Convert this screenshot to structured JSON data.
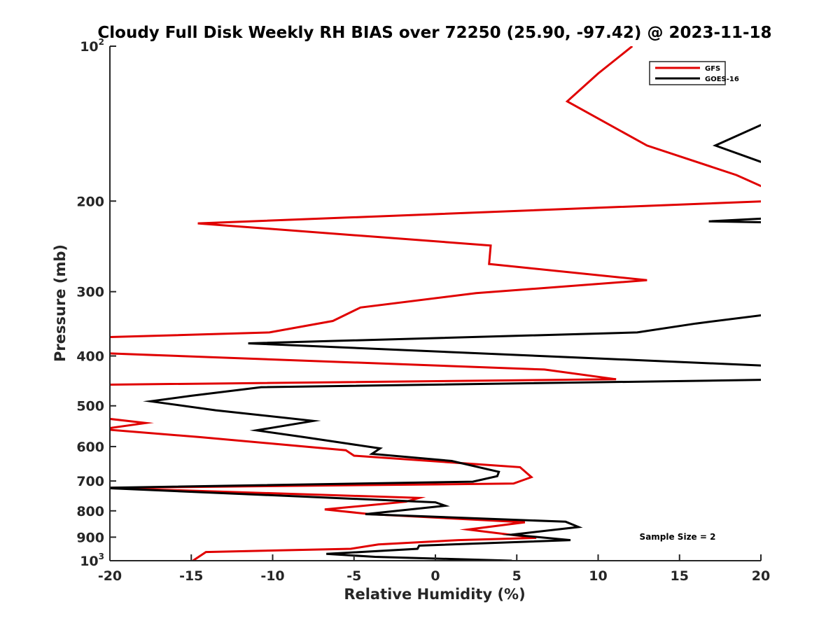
{
  "chart_data": {
    "type": "line",
    "title": "Cloudy Full Disk Weekly RH BIAS over 72250 (25.90, -97.42) @ 2023-11-18",
    "xlabel": "Relative Humidity (%)",
    "ylabel": "Pressure (mb)",
    "xlim": [
      -20,
      20
    ],
    "ylim": [
      100,
      1000
    ],
    "y_scale": "log",
    "y_reversed": true,
    "x_ticks": [
      "-20",
      "-15",
      "-10",
      "-5",
      "0",
      "5",
      "10",
      "15",
      "20"
    ],
    "y_ticks": [
      {
        "value": 100,
        "base": "10",
        "exp": "2"
      },
      {
        "value": 200,
        "label": "200"
      },
      {
        "value": 300,
        "label": "300"
      },
      {
        "value": 400,
        "label": "400"
      },
      {
        "value": 500,
        "label": "500"
      },
      {
        "value": 600,
        "label": "600"
      },
      {
        "value": 700,
        "label": "700"
      },
      {
        "value": 800,
        "label": "800"
      },
      {
        "value": 900,
        "label": "900"
      },
      {
        "value": 1000,
        "base": "10",
        "exp": "3"
      }
    ],
    "grid": false,
    "legend_position": "top-right",
    "annotation": "Sample Size = 2",
    "series": [
      {
        "name": "GFS",
        "color": "#e00000",
        "points": [
          [
            -14.9,
            1000
          ],
          [
            -14.1,
            962
          ],
          [
            -5.2,
            948
          ],
          [
            -3.5,
            930
          ],
          [
            1.4,
            912
          ],
          [
            6.2,
            903
          ],
          [
            2.0,
            870
          ],
          [
            5.5,
            842
          ],
          [
            -4.0,
            812
          ],
          [
            -6.8,
            795
          ],
          [
            -1.8,
            768
          ],
          [
            -1.0,
            755
          ],
          [
            -20.5,
            722
          ],
          [
            4.8,
            708
          ],
          [
            5.9,
            688
          ],
          [
            5.2,
            658
          ],
          [
            -5.0,
            625
          ],
          [
            -5.5,
            610
          ],
          [
            -14.5,
            575
          ],
          [
            -20.5,
            555
          ],
          [
            -17.8,
            540
          ],
          [
            -20.5,
            528
          ],
          [
            -20.5,
            455
          ],
          [
            11.1,
            444
          ],
          [
            6.7,
            425
          ],
          [
            -20.5,
            395
          ],
          [
            -20.5,
            368
          ],
          [
            -10.2,
            360
          ],
          [
            -6.3,
            342
          ],
          [
            -4.6,
            322
          ],
          [
            2.5,
            302
          ],
          [
            13.0,
            285
          ],
          [
            3.3,
            265
          ],
          [
            3.4,
            244
          ],
          [
            -14.6,
            221
          ],
          [
            20.5,
            200
          ],
          [
            20.5,
            190
          ],
          [
            18.5,
            178
          ],
          [
            13.0,
            156
          ],
          [
            8.1,
            128
          ],
          [
            10.0,
            113
          ],
          [
            12.1,
            100
          ]
        ]
      },
      {
        "name": "GOES-16",
        "color": "#000000",
        "points": [
          [
            4.7,
            1000
          ],
          [
            -3.7,
            983
          ],
          [
            -6.7,
            970
          ],
          [
            -1.1,
            948
          ],
          [
            -1.0,
            935
          ],
          [
            8.3,
            912
          ],
          [
            4.7,
            890
          ],
          [
            8.8,
            860
          ],
          [
            8.0,
            840
          ],
          [
            -4.3,
            812
          ],
          [
            0.6,
            782
          ],
          [
            0.0,
            770
          ],
          [
            -20.5,
            722
          ],
          [
            2.3,
            702
          ],
          [
            3.8,
            685
          ],
          [
            3.9,
            672
          ],
          [
            1.0,
            640
          ],
          [
            -3.9,
            620
          ],
          [
            -3.4,
            605
          ],
          [
            -8.1,
            575
          ],
          [
            -11.0,
            558
          ],
          [
            -7.5,
            535
          ],
          [
            -13.5,
            510
          ],
          [
            -17.5,
            490
          ],
          [
            -15.0,
            478
          ],
          [
            -10.7,
            460
          ],
          [
            20.5,
            445
          ],
          [
            20.5,
            418
          ],
          [
            -11.5,
            378
          ],
          [
            12.4,
            360
          ],
          [
            16.0,
            346
          ],
          [
            20.5,
            332
          ],
          [
            20.5,
            220
          ],
          [
            16.8,
            219
          ],
          [
            20.5,
            216
          ],
          [
            20.5,
            170
          ],
          [
            17.2,
            156
          ],
          [
            20.5,
            140
          ]
        ]
      }
    ]
  }
}
